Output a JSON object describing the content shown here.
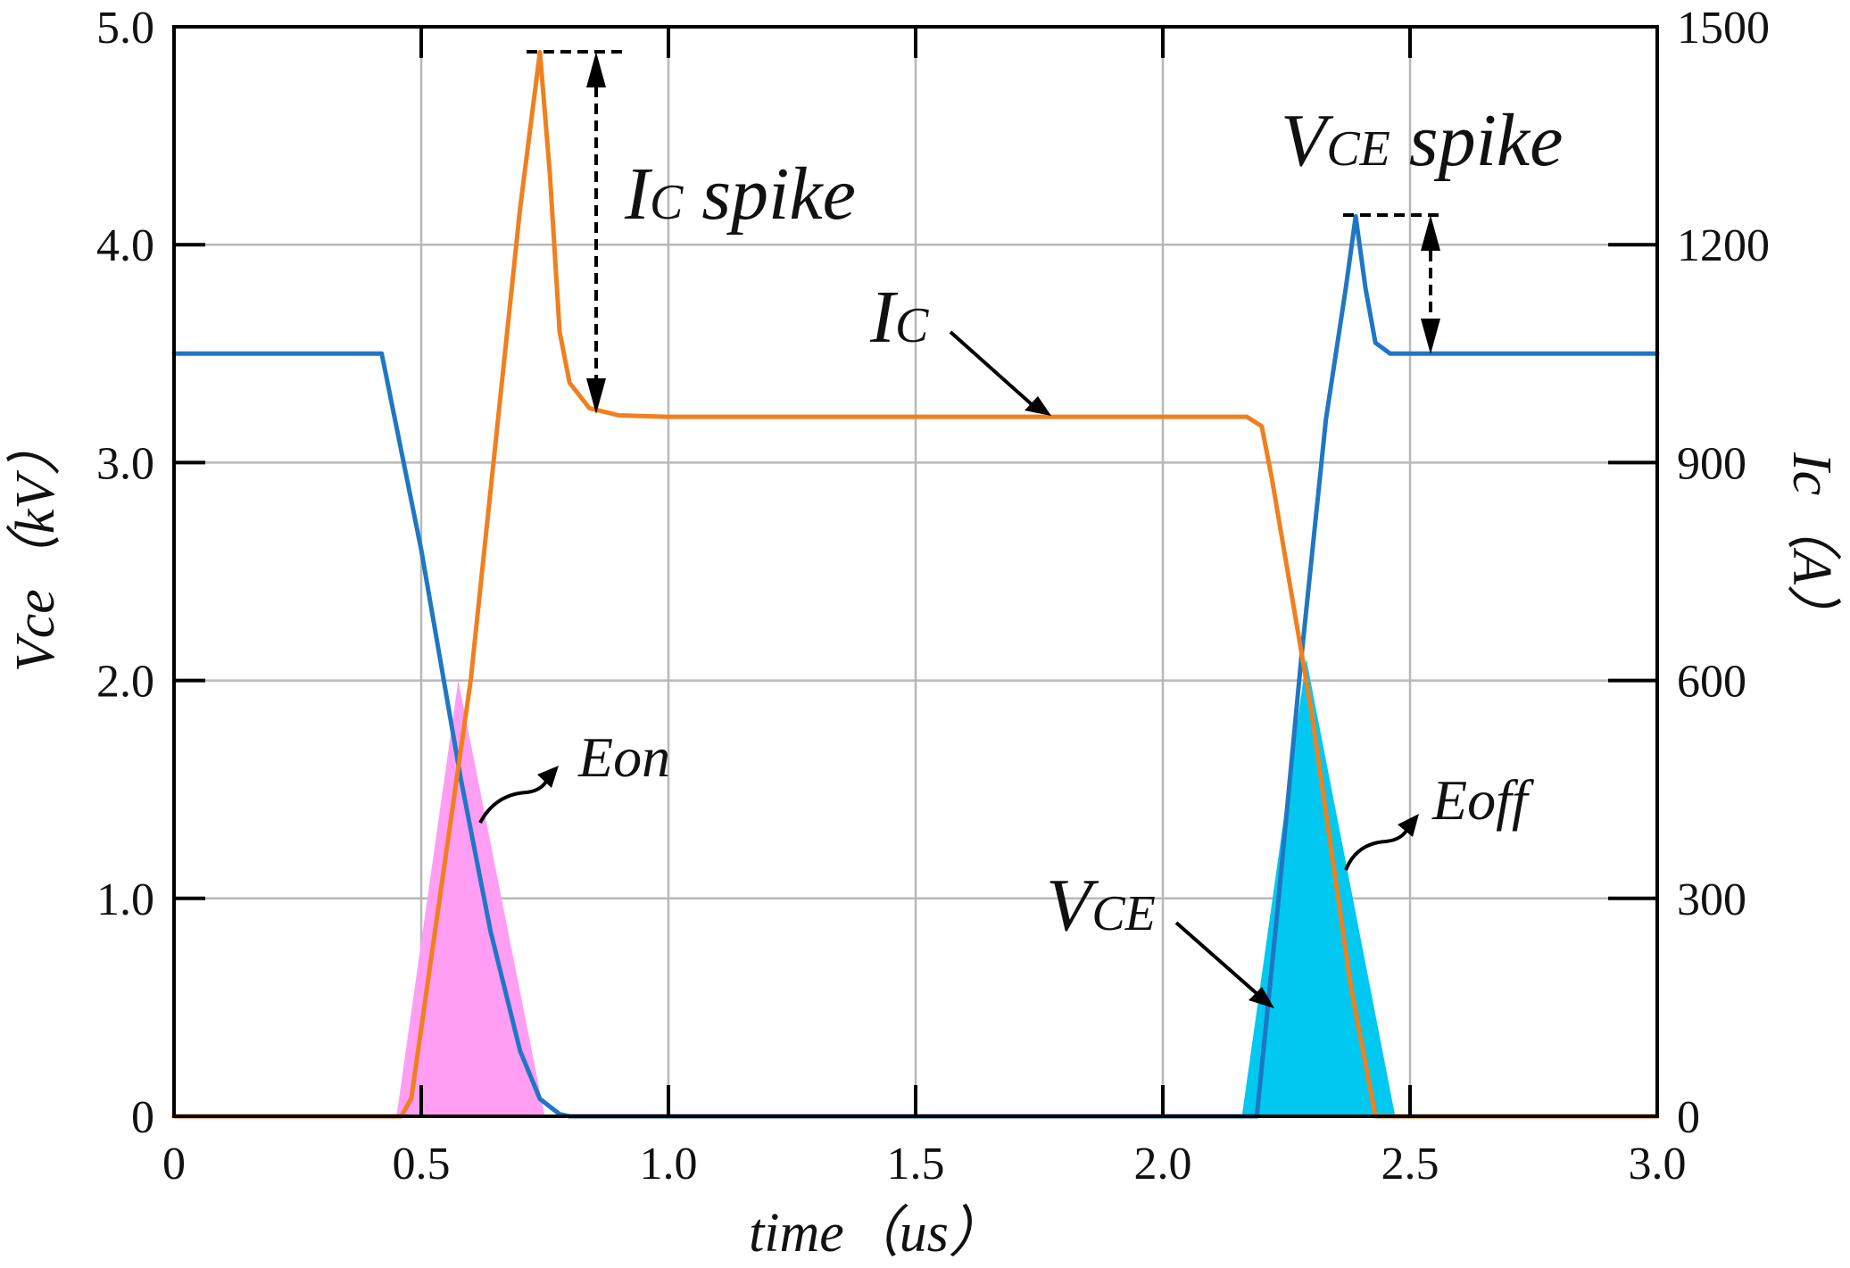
{
  "chart_data": {
    "type": "line",
    "title": "",
    "xlabel": "time（us）",
    "ylabel_left": "Vce（kV）",
    "ylabel_right": "Ic（A）",
    "xlim": [
      0,
      3.0
    ],
    "ylim_left": [
      0,
      5.0
    ],
    "ylim_right": [
      0,
      1500
    ],
    "grid": true,
    "x_ticks": [
      "0",
      "0.5",
      "1.0",
      "1.5",
      "2.0",
      "2.5",
      "3.0"
    ],
    "y_left_ticks": [
      "0",
      "1.0",
      "2.0",
      "3.0",
      "4.0",
      "5.0"
    ],
    "y_right_ticks": [
      "0",
      "300",
      "600",
      "900",
      "1200",
      "1500"
    ],
    "series": [
      {
        "name": "VCE",
        "axis": "left",
        "unit": "kV",
        "color": "#1f77c4",
        "x": [
          0,
          0.42,
          0.5,
          0.58,
          0.64,
          0.7,
          0.74,
          0.78,
          0.8,
          2.19,
          2.23,
          2.28,
          2.33,
          2.37,
          2.39,
          2.41,
          2.43,
          2.46,
          2.5,
          3.0
        ],
        "y": [
          3.5,
          3.5,
          2.6,
          1.55,
          0.85,
          0.3,
          0.08,
          0.01,
          0,
          0,
          0.9,
          2.1,
          3.2,
          3.8,
          4.13,
          3.8,
          3.55,
          3.5,
          3.5,
          3.5
        ]
      },
      {
        "name": "IC",
        "axis": "right",
        "unit": "A",
        "color": "#f07f1e",
        "x": [
          0,
          0.46,
          0.48,
          0.6,
          0.7,
          0.74,
          0.76,
          0.78,
          0.8,
          0.84,
          0.9,
          1.0,
          2.17,
          2.2,
          2.22,
          2.3,
          2.38,
          2.43,
          2.44,
          3.0
        ],
        "y": [
          0,
          0,
          25,
          600,
          1250,
          1465,
          1300,
          1080,
          1010,
          975,
          965,
          963,
          963,
          950,
          880,
          560,
          180,
          0,
          0,
          0
        ]
      }
    ],
    "energy_areas": [
      {
        "name": "Eon",
        "color": "#ff9ef3",
        "x": [
          0.45,
          0.575,
          0.75
        ],
        "y": [
          0,
          2.0,
          0
        ]
      },
      {
        "name": "Eoff",
        "color": "#00c8f0",
        "x": [
          2.16,
          2.29,
          2.47
        ],
        "y": [
          0,
          2.1,
          0
        ]
      }
    ],
    "annotations": {
      "ic_spike": {
        "label_main": "I",
        "label_sub": "C",
        "label_rest": " spike",
        "peak_A": 1465,
        "steady_A": 963
      },
      "vce_spike": {
        "label_main": "V",
        "label_sub": "CE",
        "label_rest": " spike",
        "peak_kV": 4.13,
        "steady_kV": 3.5
      },
      "ic_curve_label": {
        "label_main": "I",
        "label_sub": "C"
      },
      "vce_curve_label": {
        "label_main": "V",
        "label_sub": "CE"
      },
      "eon_label": "Eon",
      "eoff_label": "Eoff"
    }
  }
}
